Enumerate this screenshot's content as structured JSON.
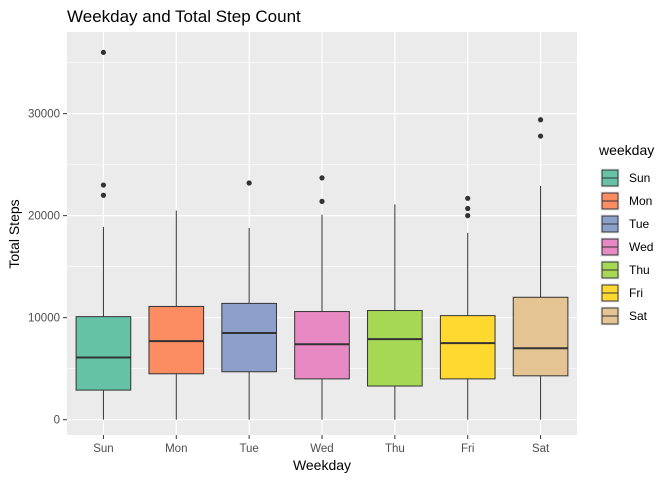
{
  "chart_data": {
    "type": "boxplot",
    "title": "Weekday and Total Step Count",
    "xlabel": "Weekday",
    "ylabel": "Total Steps",
    "ylim": [
      -1500,
      38000
    ],
    "yticks": [
      0,
      10000,
      20000,
      30000
    ],
    "grid": true,
    "legend": {
      "title": "weekday",
      "position": "right"
    },
    "categories": [
      "Sun",
      "Mon",
      "Tue",
      "Wed",
      "Thu",
      "Fri",
      "Sat"
    ],
    "series": [
      {
        "name": "Sun",
        "color": "#66c2a5",
        "min": 0,
        "q1": 2900,
        "median": 6100,
        "q3": 10100,
        "max": 18900,
        "outliers": [
          22000,
          23000,
          36000
        ]
      },
      {
        "name": "Mon",
        "color": "#fc8d62",
        "min": 0,
        "q1": 4500,
        "median": 7700,
        "q3": 11100,
        "max": 20500,
        "outliers": []
      },
      {
        "name": "Tue",
        "color": "#8da0cb",
        "min": 0,
        "q1": 4700,
        "median": 8500,
        "q3": 11400,
        "max": 18800,
        "outliers": [
          23200
        ]
      },
      {
        "name": "Wed",
        "color": "#e78ac3",
        "min": 0,
        "q1": 4000,
        "median": 7400,
        "q3": 10600,
        "max": 20100,
        "outliers": [
          21400,
          23700
        ]
      },
      {
        "name": "Thu",
        "color": "#a6d854",
        "min": 0,
        "q1": 3300,
        "median": 7900,
        "q3": 10700,
        "max": 21100,
        "outliers": []
      },
      {
        "name": "Fri",
        "color": "#ffd92f",
        "min": 0,
        "q1": 4000,
        "median": 7500,
        "q3": 10200,
        "max": 18300,
        "outliers": [
          20000,
          20700,
          21700
        ]
      },
      {
        "name": "Sat",
        "color": "#e5c494",
        "min": 0,
        "q1": 4300,
        "median": 7000,
        "q3": 12000,
        "max": 22900,
        "outliers": [
          27800,
          29400
        ]
      }
    ]
  }
}
